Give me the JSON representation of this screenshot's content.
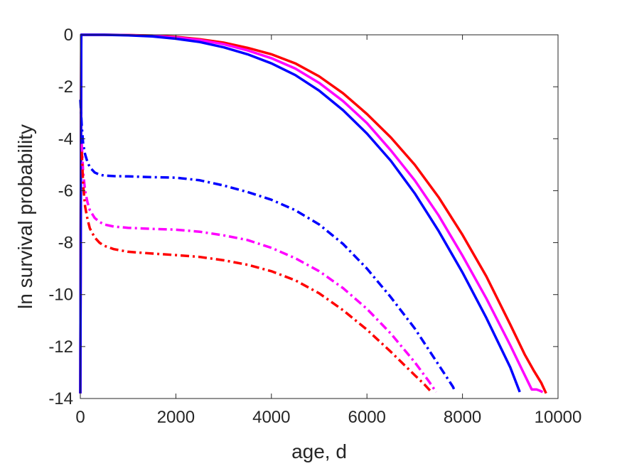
{
  "chart_data": {
    "type": "line",
    "xlabel": "age, d",
    "ylabel": "ln survival probability",
    "xlim": [
      0,
      10000
    ],
    "ylim": [
      -14,
      0
    ],
    "xticks": [
      0,
      2000,
      4000,
      6000,
      8000,
      10000
    ],
    "yticks": [
      0,
      -2,
      -4,
      -6,
      -8,
      -10,
      -12,
      -14
    ],
    "grid": false,
    "legend": "none",
    "series": [
      {
        "color": "#ff0000",
        "style": "solid",
        "x": [
          0,
          20,
          500,
          1000,
          1500,
          2000,
          2500,
          3000,
          3500,
          4000,
          4500,
          5000,
          5500,
          6000,
          6500,
          7000,
          7500,
          8000,
          8500,
          9000,
          9300,
          9500,
          9650,
          9750
        ],
        "y": [
          -13.8,
          0,
          0,
          -0.01,
          -0.03,
          -0.08,
          -0.17,
          -0.3,
          -0.5,
          -0.75,
          -1.1,
          -1.6,
          -2.25,
          -3.05,
          -3.95,
          -5.0,
          -6.25,
          -7.7,
          -9.3,
          -11.15,
          -12.3,
          -12.95,
          -13.4,
          -13.8
        ]
      },
      {
        "color": "#ff00ff",
        "style": "solid",
        "x": [
          0,
          20,
          500,
          1000,
          1500,
          2000,
          2500,
          3000,
          3500,
          4000,
          4500,
          5000,
          5500,
          6000,
          6500,
          7000,
          7500,
          8000,
          8500,
          9000,
          9250,
          9450,
          9550,
          9620,
          9680
        ],
        "y": [
          -13.8,
          0,
          0,
          -0.01,
          -0.04,
          -0.1,
          -0.2,
          -0.36,
          -0.6,
          -0.9,
          -1.3,
          -1.85,
          -2.55,
          -3.4,
          -4.45,
          -5.6,
          -6.95,
          -8.5,
          -10.15,
          -11.95,
          -12.9,
          -13.65,
          -13.65,
          -13.7,
          -13.75
        ]
      },
      {
        "color": "#0000ff",
        "style": "solid",
        "x": [
          0,
          20,
          500,
          1000,
          1500,
          2000,
          2500,
          3000,
          3500,
          4000,
          4500,
          5000,
          5500,
          6000,
          6500,
          7000,
          7500,
          8000,
          8500,
          9000,
          9200
        ],
        "y": [
          -13.8,
          0,
          0,
          -0.02,
          -0.06,
          -0.15,
          -0.28,
          -0.48,
          -0.75,
          -1.1,
          -1.55,
          -2.15,
          -2.9,
          -3.8,
          -4.85,
          -6.1,
          -7.55,
          -9.15,
          -10.9,
          -12.8,
          -13.75
        ]
      },
      {
        "color": "#0000ff",
        "style": "dashdot",
        "x": [
          0,
          30,
          60,
          100,
          150,
          200,
          300,
          400,
          500,
          700,
          1000,
          1500,
          2000,
          2500,
          3000,
          3500,
          4000,
          4500,
          5000,
          5500,
          6000,
          6500,
          7000,
          7500,
          7800,
          7850
        ],
        "y": [
          -2.5,
          -3.5,
          -4.2,
          -4.6,
          -4.9,
          -5.1,
          -5.3,
          -5.38,
          -5.42,
          -5.44,
          -5.45,
          -5.48,
          -5.5,
          -5.6,
          -5.8,
          -6.05,
          -6.35,
          -6.75,
          -7.3,
          -8.05,
          -9.0,
          -10.1,
          -11.3,
          -12.7,
          -13.55,
          -13.75
        ]
      },
      {
        "color": "#ff00ff",
        "style": "dashdot",
        "x": [
          30,
          60,
          100,
          150,
          200,
          300,
          400,
          500,
          700,
          1000,
          1500,
          2000,
          2500,
          3000,
          3500,
          4000,
          4500,
          5000,
          5500,
          6000,
          6500,
          7000,
          7300,
          7450
        ],
        "y": [
          -4.2,
          -5.3,
          -6.0,
          -6.45,
          -6.75,
          -7.05,
          -7.2,
          -7.3,
          -7.38,
          -7.43,
          -7.47,
          -7.5,
          -7.58,
          -7.72,
          -7.9,
          -8.2,
          -8.6,
          -9.1,
          -9.75,
          -10.55,
          -11.5,
          -12.6,
          -13.35,
          -13.75
        ]
      },
      {
        "color": "#ff0000",
        "style": "dashdot",
        "x": [
          30,
          60,
          100,
          150,
          200,
          300,
          400,
          500,
          700,
          1000,
          1500,
          2000,
          2500,
          3000,
          3500,
          4000,
          4500,
          5000,
          5500,
          6000,
          6500,
          7000,
          7200,
          7350
        ],
        "y": [
          -4.5,
          -5.8,
          -6.6,
          -7.1,
          -7.45,
          -7.8,
          -8.0,
          -8.12,
          -8.25,
          -8.35,
          -8.42,
          -8.48,
          -8.55,
          -8.68,
          -8.85,
          -9.1,
          -9.45,
          -9.95,
          -10.6,
          -11.35,
          -12.2,
          -13.1,
          -13.45,
          -13.75
        ]
      }
    ]
  }
}
